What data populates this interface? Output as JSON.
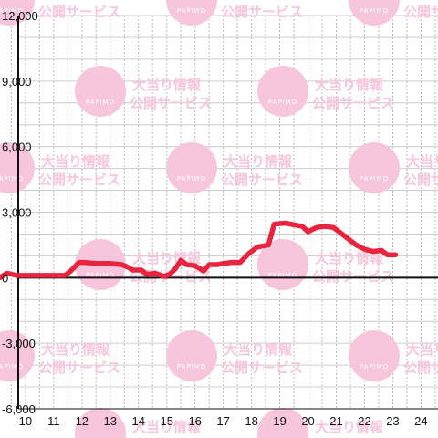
{
  "watermark": {
    "line1": "大当り情報",
    "line2": "公開サービス",
    "logo": "PAPIMO",
    "color": "#f7c6dd"
  },
  "chart_data": {
    "type": "line",
    "title": "",
    "xlabel": "",
    "ylabel": "",
    "x_ticks": [
      "10",
      "11",
      "12",
      "13",
      "14",
      "15",
      "16",
      "17",
      "18",
      "19",
      "20",
      "21",
      "22",
      "23",
      "24"
    ],
    "y_ticks": [
      "12,000",
      "9,000",
      "6,000",
      "3,000",
      "0",
      "-3,000",
      "-6,000"
    ],
    "xlim": [
      9.1,
      24.6
    ],
    "ylim": [
      -6000,
      12000
    ],
    "grid": true,
    "line_color": "#e8243e",
    "series": [
      {
        "x": [
          9.1,
          9.35,
          9.7,
          10.0,
          10.5,
          11.0,
          11.4,
          11.6,
          11.9,
          12.1,
          12.5,
          13.0,
          13.4,
          13.6,
          13.8,
          14.1,
          14.3,
          14.6,
          14.9,
          15.1,
          15.3,
          15.5,
          15.7,
          16.0,
          16.3,
          16.5,
          16.8,
          17.0,
          17.3,
          17.6,
          17.9,
          18.2,
          18.6,
          18.8,
          19.2,
          19.6,
          19.8,
          20.0,
          20.3,
          20.6,
          20.9,
          21.1,
          21.4,
          21.7,
          22.0,
          22.3,
          22.6,
          22.8,
          23.1
        ],
        "y": [
          0,
          200,
          100,
          100,
          100,
          100,
          100,
          300,
          700,
          700,
          650,
          650,
          600,
          500,
          350,
          350,
          150,
          200,
          50,
          150,
          400,
          800,
          600,
          550,
          300,
          600,
          600,
          650,
          700,
          700,
          1100,
          1400,
          1500,
          2450,
          2500,
          2400,
          2350,
          2100,
          2300,
          2350,
          2300,
          2100,
          1800,
          1500,
          1300,
          1200,
          1250,
          1050,
          1050
        ]
      }
    ]
  }
}
